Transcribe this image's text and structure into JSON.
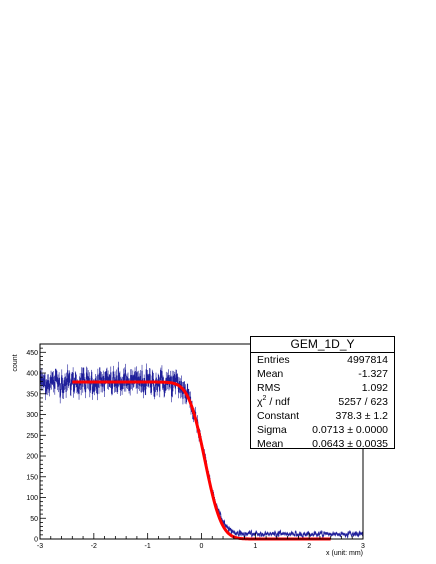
{
  "chart_data": {
    "type": "histogram",
    "xlabel": "x (unit: mm)",
    "ylabel": "count",
    "xlim": [
      -3,
      3
    ],
    "ylim": [
      0,
      470
    ],
    "x_ticks": [
      -3,
      -2,
      -1,
      0,
      1,
      2,
      3
    ],
    "y_ticks": [
      0,
      50,
      100,
      150,
      200,
      250,
      300,
      350,
      400,
      450
    ],
    "grid": false,
    "histogram_color": "#1f1f9a",
    "fit_color": "#ff0000",
    "histogram_shape": {
      "left_plateau_mean": 378,
      "left_plateau_spread": 25,
      "edge_center": 0.0643,
      "edge_sigma": 0.0713,
      "right_tail_level": 12,
      "right_tail_spread": 5,
      "bins": 600
    },
    "fit_curve": {
      "function": "erfc-edge",
      "constant": 378.3,
      "mean": 0.0643,
      "sigma": 0.0713,
      "x_start": -2.4,
      "x_end": 2.4
    },
    "stats_box": {
      "title": "GEM_1D_Y",
      "rows": [
        {
          "label": "Entries",
          "value": "4997814"
        },
        {
          "label": "Mean",
          "value": "-1.327"
        },
        {
          "label": "RMS",
          "value": "1.092"
        },
        {
          "label_main": "χ",
          "label_sup": "2",
          "label_rest": " / ndf",
          "value": "5257 / 623"
        },
        {
          "label": "Constant",
          "value": "378.3 ± 1.2"
        },
        {
          "label": "Sigma",
          "value": "0.0713 ± 0.0000"
        },
        {
          "label": "Mean",
          "value": "0.0643 ± 0.0035"
        }
      ]
    }
  }
}
